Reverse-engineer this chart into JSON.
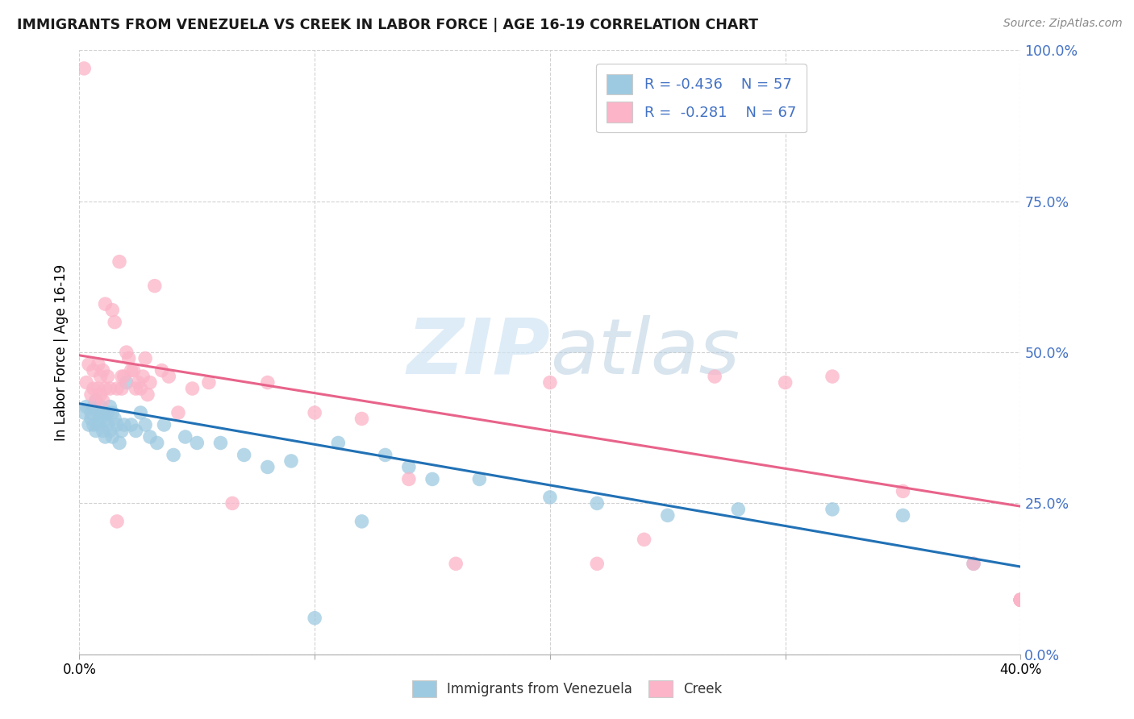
{
  "title": "IMMIGRANTS FROM VENEZUELA VS CREEK IN LABOR FORCE | AGE 16-19 CORRELATION CHART",
  "source": "Source: ZipAtlas.com",
  "ylabel": "In Labor Force | Age 16-19",
  "ytick_vals": [
    0.0,
    0.25,
    0.5,
    0.75,
    1.0
  ],
  "ytick_labels": [
    "0.0%",
    "25.0%",
    "50.0%",
    "75.0%",
    "100.0%"
  ],
  "xlim": [
    0.0,
    0.4
  ],
  "ylim": [
    0.0,
    1.0
  ],
  "color_blue": "#9ecae1",
  "color_pink": "#fbb4c8",
  "color_blue_line": "#2171b5",
  "color_pink_line": "#e8638a",
  "color_ytick": "#4472c4",
  "watermark_color": "#d0e4f5",
  "blue_scatter_x": [
    0.002,
    0.003,
    0.004,
    0.005,
    0.005,
    0.006,
    0.006,
    0.007,
    0.007,
    0.008,
    0.008,
    0.009,
    0.009,
    0.01,
    0.01,
    0.011,
    0.011,
    0.012,
    0.012,
    0.013,
    0.013,
    0.014,
    0.014,
    0.015,
    0.016,
    0.017,
    0.018,
    0.019,
    0.02,
    0.022,
    0.024,
    0.026,
    0.028,
    0.03,
    0.033,
    0.036,
    0.04,
    0.045,
    0.05,
    0.06,
    0.07,
    0.08,
    0.09,
    0.1,
    0.11,
    0.12,
    0.13,
    0.14,
    0.15,
    0.17,
    0.2,
    0.22,
    0.25,
    0.28,
    0.32,
    0.35,
    0.38
  ],
  "blue_scatter_y": [
    0.4,
    0.41,
    0.38,
    0.4,
    0.39,
    0.41,
    0.38,
    0.42,
    0.37,
    0.4,
    0.38,
    0.41,
    0.39,
    0.4,
    0.37,
    0.39,
    0.36,
    0.4,
    0.38,
    0.41,
    0.37,
    0.4,
    0.36,
    0.39,
    0.38,
    0.35,
    0.37,
    0.38,
    0.45,
    0.38,
    0.37,
    0.4,
    0.38,
    0.36,
    0.35,
    0.38,
    0.33,
    0.36,
    0.35,
    0.35,
    0.33,
    0.31,
    0.32,
    0.06,
    0.35,
    0.22,
    0.33,
    0.31,
    0.29,
    0.29,
    0.26,
    0.25,
    0.23,
    0.24,
    0.24,
    0.23,
    0.15
  ],
  "pink_scatter_x": [
    0.002,
    0.003,
    0.004,
    0.005,
    0.006,
    0.006,
    0.007,
    0.008,
    0.008,
    0.009,
    0.009,
    0.01,
    0.01,
    0.011,
    0.011,
    0.012,
    0.013,
    0.014,
    0.015,
    0.016,
    0.016,
    0.017,
    0.018,
    0.018,
    0.019,
    0.02,
    0.021,
    0.022,
    0.023,
    0.024,
    0.025,
    0.026,
    0.027,
    0.028,
    0.029,
    0.03,
    0.032,
    0.035,
    0.038,
    0.042,
    0.048,
    0.055,
    0.065,
    0.08,
    0.1,
    0.12,
    0.14,
    0.16,
    0.2,
    0.22,
    0.24,
    0.27,
    0.3,
    0.32,
    0.35,
    0.38,
    0.4,
    0.4,
    0.4,
    0.4,
    0.4,
    0.4,
    0.4,
    0.4,
    0.4,
    0.4,
    0.4
  ],
  "pink_scatter_y": [
    0.97,
    0.45,
    0.48,
    0.43,
    0.44,
    0.47,
    0.42,
    0.48,
    0.44,
    0.46,
    0.43,
    0.47,
    0.42,
    0.44,
    0.58,
    0.46,
    0.44,
    0.57,
    0.55,
    0.22,
    0.44,
    0.65,
    0.46,
    0.44,
    0.46,
    0.5,
    0.49,
    0.47,
    0.47,
    0.44,
    0.45,
    0.44,
    0.46,
    0.49,
    0.43,
    0.45,
    0.61,
    0.47,
    0.46,
    0.4,
    0.44,
    0.45,
    0.25,
    0.45,
    0.4,
    0.39,
    0.29,
    0.15,
    0.45,
    0.15,
    0.19,
    0.46,
    0.45,
    0.46,
    0.27,
    0.15,
    0.09,
    0.09,
    0.09,
    0.09,
    0.09,
    0.09,
    0.09,
    0.09,
    0.09,
    0.09,
    0.09
  ],
  "blue_line_x0": 0.0,
  "blue_line_y0": 0.415,
  "blue_line_x1": 0.4,
  "blue_line_y1": 0.145,
  "pink_line_x0": 0.0,
  "pink_line_y0": 0.495,
  "pink_line_x1": 0.4,
  "pink_line_y1": 0.245
}
